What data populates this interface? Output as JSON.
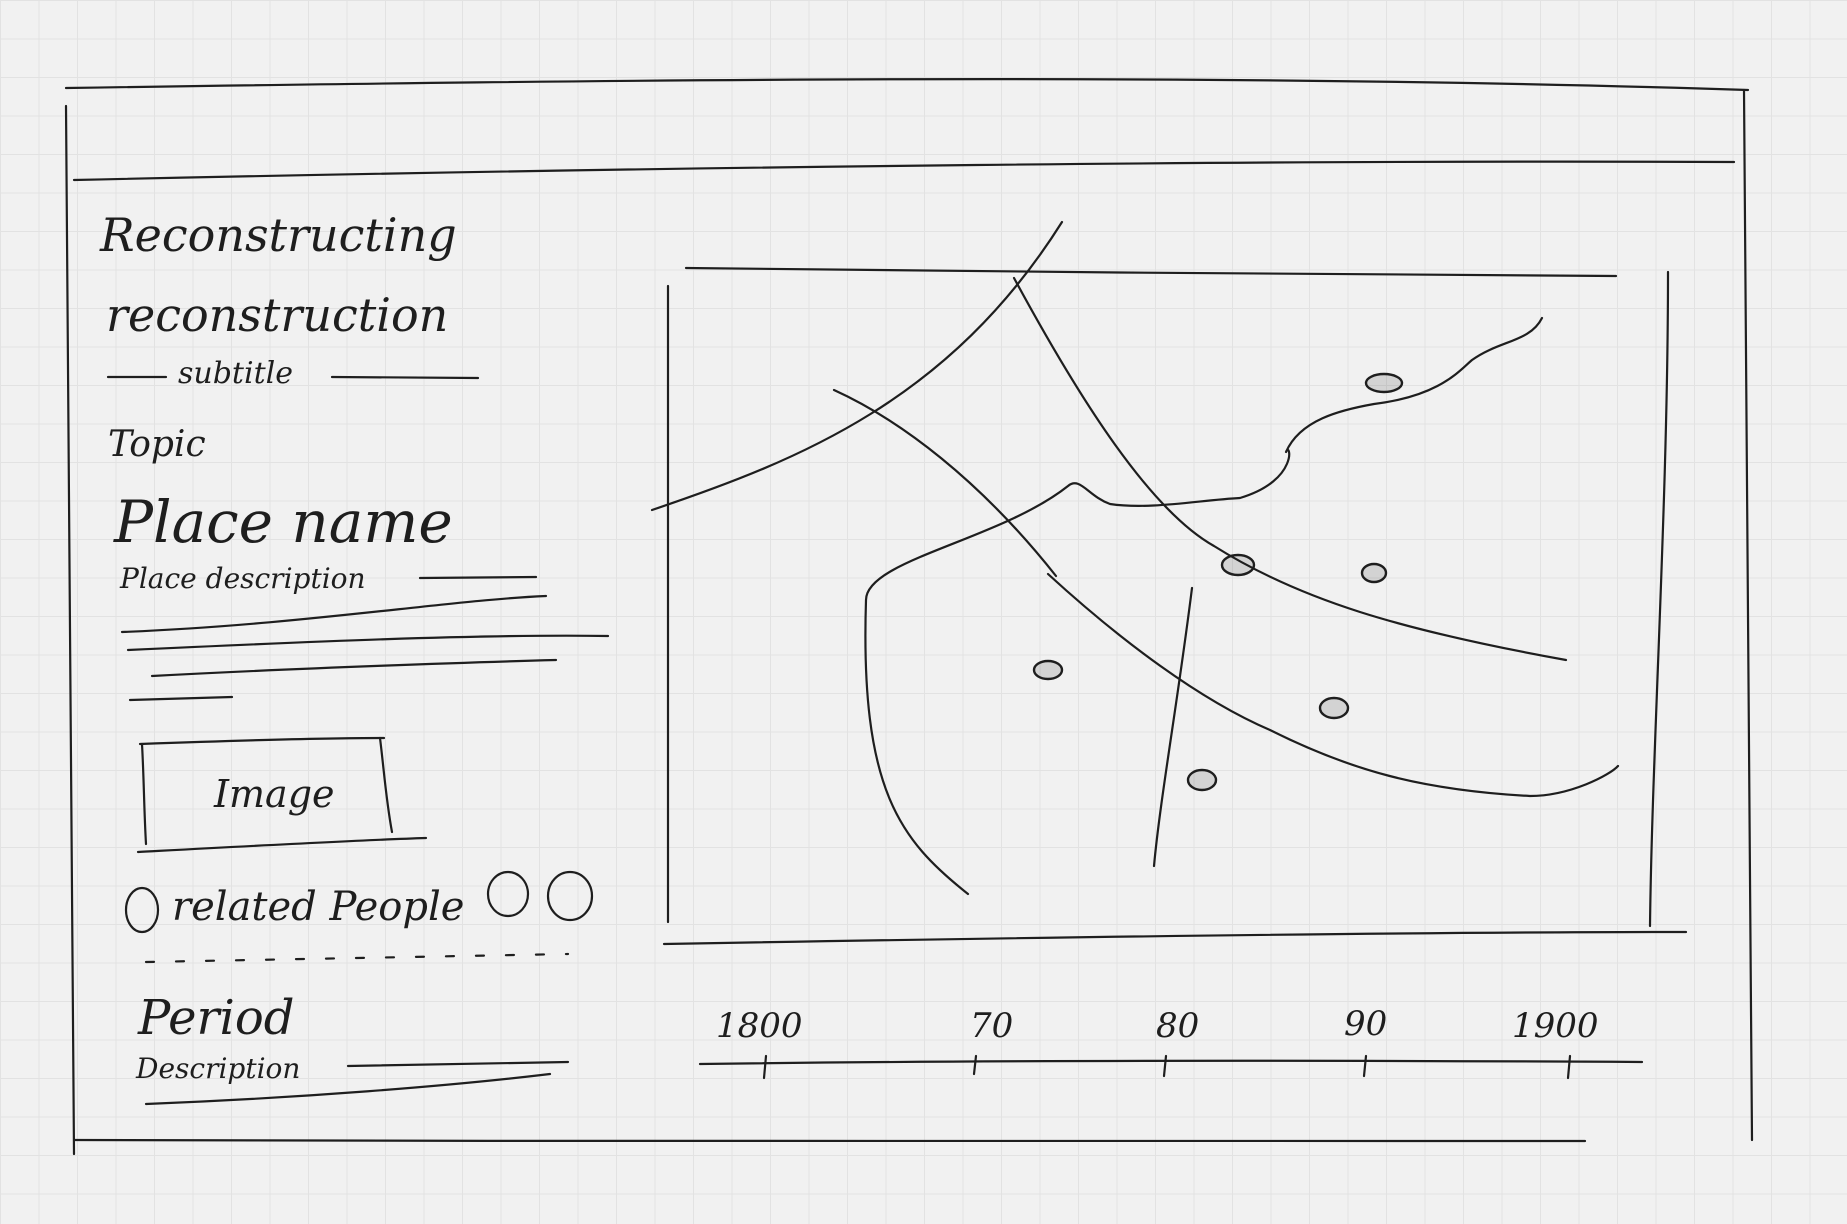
{
  "sidebar": {
    "title_line1": "Reconstructing",
    "title_line2": "reconstruction",
    "subtitle": "subtitle",
    "topic_label": "Topic",
    "place_name": "Place name",
    "place_description": "Place description",
    "image_label": "Image",
    "related_people": "related People",
    "period_label": "Period",
    "period_description": "Description"
  },
  "timeline": {
    "ticks": [
      "1800",
      "70",
      "80",
      "90",
      "1900"
    ]
  },
  "colors": {
    "ink": "#1e1e1e",
    "paper": "#f1f1f1",
    "grid": "#e2e2e2"
  }
}
